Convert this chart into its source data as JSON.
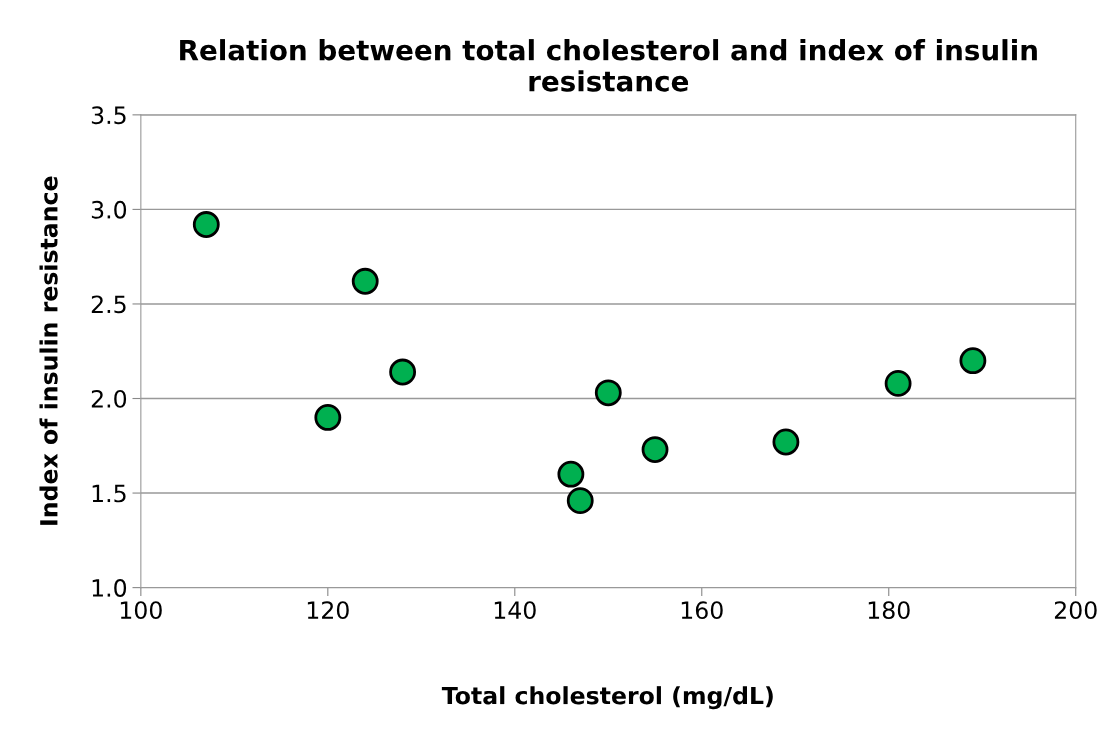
{
  "chart_data": {
    "type": "scatter",
    "title": "Relation between total cholesterol and index of insulin resistance",
    "xlabel": "Total cholesterol (mg/dL)",
    "ylabel": "Index of insulin resistance",
    "x": [
      107,
      120,
      124,
      128,
      146,
      147,
      150,
      155,
      169,
      181,
      189
    ],
    "series": [
      {
        "color": "#00b050",
        "values": [
          2.92,
          1.9,
          2.62,
          2.14,
          1.6,
          1.46,
          2.03,
          1.73,
          1.77,
          2.08,
          2.2
        ]
      }
    ],
    "xlim": [
      100,
      200
    ],
    "xticks": [
      100,
      120,
      140,
      160,
      180,
      200
    ],
    "ylim": [
      1.0,
      3.5
    ],
    "yticks": [
      {
        "value": 1.0,
        "label": "1.0"
      },
      {
        "value": 1.5,
        "label": "1.5"
      },
      {
        "value": 2.0,
        "label": "2.0"
      },
      {
        "value": 2.5,
        "label": "2.5"
      },
      {
        "value": 3.0,
        "label": "3.0"
      },
      {
        "value": 3.5,
        "label": "3.5"
      }
    ],
    "grid": "y",
    "marker": "circle"
  }
}
